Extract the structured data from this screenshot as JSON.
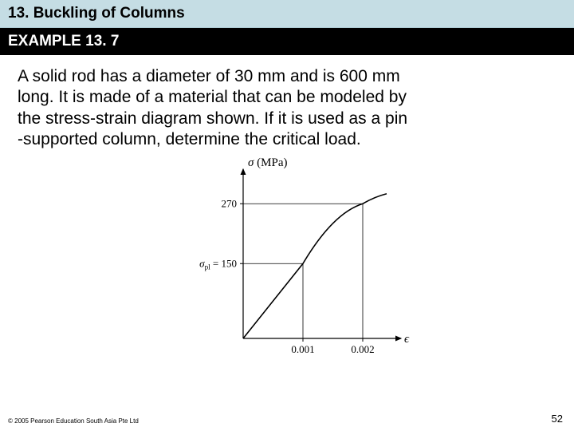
{
  "chapter": {
    "title": "13. Buckling of Columns"
  },
  "example": {
    "title": "EXAMPLE 13. 7"
  },
  "problem": {
    "text": "A solid rod has a diameter of 30 mm and is made of a material that can be modeled by the stress-strain diagram shown. If it is used as a pin-supported column, determine the critical load.",
    "line1": "A solid rod has a diameter of 30 mm and is 600 mm",
    "line2": "long. It is made of a material that can be modeled by",
    "line3": "the stress-strain diagram shown. If it is used as a pin",
    "line4": "-supported column, determine the critical load."
  },
  "figure": {
    "type": "line",
    "y_axis_label": "σ (MPa)",
    "x_axis_label": "ϵ",
    "y_ticks": [
      {
        "value": 270,
        "label": "270"
      },
      {
        "value": 150,
        "label": "σ_pl = 150",
        "is_pl": true,
        "pl_prefix": "σ",
        "pl_sub": "pl",
        "pl_rest": " = 150"
      }
    ],
    "x_ticks": [
      {
        "value": 0.001,
        "label": "0.001"
      },
      {
        "value": 0.002,
        "label": "0.002"
      }
    ],
    "xlim": [
      0,
      0.0024
    ],
    "ylim": [
      0,
      320
    ],
    "data_points": [
      {
        "x": 0,
        "y": 0
      },
      {
        "x": 0.001,
        "y": 150
      },
      {
        "x": 0.002,
        "y": 270
      },
      {
        "x": 0.0024,
        "y": 290
      }
    ],
    "colors": {
      "axis": "#000000",
      "curve": "#000000",
      "guide": "#000000",
      "background": "#ffffff",
      "text": "#000000"
    },
    "stroke": {
      "axis_width": 1.2,
      "curve_width": 1.6,
      "guide_width": 0.8
    },
    "fontsize": {
      "axis_label": 15,
      "tick": 13
    }
  },
  "footer": {
    "copyright": "© 2005 Pearson Education South Asia Pte Ltd",
    "page": "52"
  }
}
